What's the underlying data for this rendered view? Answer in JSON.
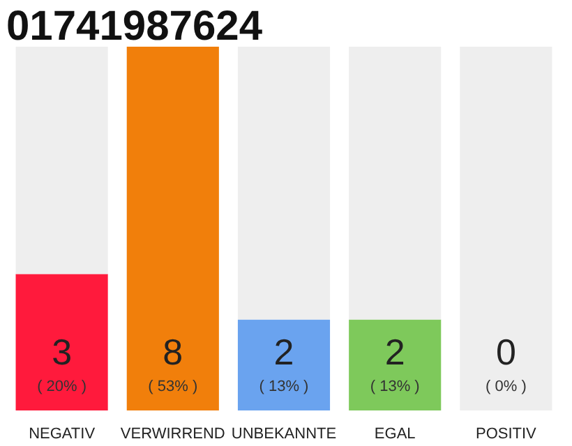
{
  "chart_data": {
    "type": "bar",
    "title": "01741987624",
    "stacked": true,
    "categories": [
      "NEGATIV",
      "VERWIRREND",
      "UNBEKANNTE",
      "EGAL",
      "POSITIV"
    ],
    "series": [
      {
        "colors": [
          "#ff1a3c",
          "#f17f0b",
          "#6aa3ef",
          "#7ec95b",
          "#eeeeee"
        ],
        "values": [
          3,
          8,
          2,
          2,
          0
        ],
        "value_labels": [
          "3",
          "8",
          "2",
          "2",
          null
        ]
      },
      {
        "color": "#eeeeee",
        "values": [
          5,
          0,
          6,
          6,
          8
        ]
      }
    ],
    "ylim": [
      0,
      8
    ],
    "tick_labels": "x",
    "annotations": [
      "( 20% )",
      "( 53% )",
      "( 13% )",
      "( 13% )",
      "( 0% )",
      {
        "text": "0",
        "x": "POSITIV",
        "y": 0
      }
    ]
  }
}
